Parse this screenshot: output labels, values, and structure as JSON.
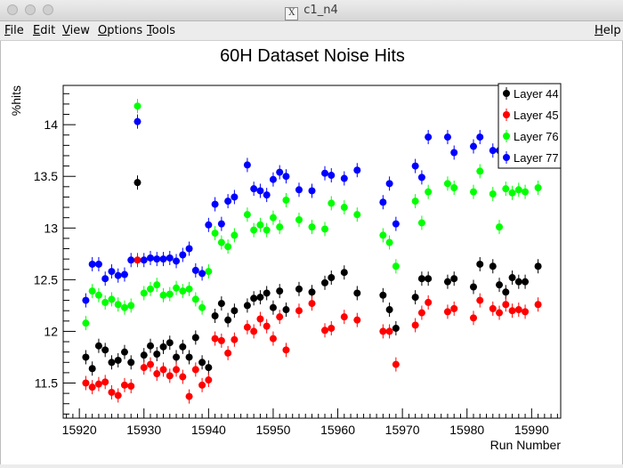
{
  "window": {
    "title": "c1_n4",
    "x_icon": "X"
  },
  "menu": {
    "file": "File",
    "edit": "Edit",
    "view": "View",
    "options": "Options",
    "tools": "Tools",
    "help": "Help"
  },
  "colors": {
    "layer44": "#000000",
    "layer45": "#ff0000",
    "layer76": "#00ff00",
    "layer77": "#0000ff"
  },
  "chart_data": {
    "type": "scatter",
    "title": "60H Dataset Noise Hits",
    "xlabel": "Run Number",
    "ylabel": "%hits",
    "xlim": [
      15917.5,
      15994.5
    ],
    "ylim": [
      11.16,
      14.38
    ],
    "xticks": [
      15920,
      15930,
      15940,
      15950,
      15960,
      15970,
      15980,
      15990
    ],
    "xtick_labels": [
      "15920",
      "15930",
      "15940",
      "15950",
      "15960",
      "15970",
      "15980",
      "15990"
    ],
    "yticks": [
      11.5,
      12,
      12.5,
      13,
      13.5,
      14
    ],
    "ytick_labels": [
      "11.5",
      "12",
      "12.5",
      "13",
      "13.5",
      "14"
    ],
    "legend_position": "top-right",
    "x": [
      15921,
      15922,
      15923,
      15924,
      15925,
      15926,
      15927,
      15928,
      15929,
      15930,
      15931,
      15932,
      15933,
      15934,
      15935,
      15936,
      15937,
      15938,
      15939,
      15940,
      15941,
      15942,
      15943,
      15944,
      15946,
      15947,
      15948,
      15949,
      15950,
      15951,
      15952,
      15954,
      15956,
      15958,
      15959,
      15961,
      15963,
      15967,
      15968,
      15969,
      15972,
      15973,
      15974,
      15977,
      15978,
      15981,
      15982,
      15984,
      15985,
      15986,
      15987,
      15988,
      15989,
      15991
    ],
    "series": [
      {
        "name": "Layer 44",
        "color": "#000000",
        "values": [
          11.75,
          11.64,
          11.86,
          11.82,
          11.7,
          11.72,
          11.8,
          11.7,
          13.44,
          11.77,
          11.86,
          11.78,
          11.85,
          11.89,
          11.75,
          11.85,
          11.75,
          11.94,
          11.7,
          11.65,
          12.15,
          12.27,
          12.11,
          12.2,
          12.25,
          12.32,
          12.33,
          12.37,
          12.23,
          12.39,
          12.21,
          12.41,
          12.38,
          12.47,
          12.52,
          12.57,
          12.37,
          12.35,
          12.21,
          12.03,
          12.33,
          12.51,
          12.51,
          12.48,
          12.51,
          12.43,
          12.65,
          12.63,
          12.45,
          12.38,
          12.52,
          12.48,
          12.48,
          12.63
        ]
      },
      {
        "name": "Layer 45",
        "color": "#ff0000",
        "values": [
          11.5,
          11.46,
          11.49,
          11.51,
          11.41,
          11.38,
          11.48,
          11.47,
          12.69,
          11.65,
          11.68,
          11.59,
          11.63,
          11.57,
          11.63,
          11.56,
          11.37,
          11.63,
          11.48,
          11.53,
          11.93,
          11.91,
          11.79,
          11.92,
          12.04,
          12.0,
          12.12,
          12.05,
          11.93,
          12.14,
          11.82,
          12.2,
          12.27,
          12.01,
          12.03,
          12.14,
          12.11,
          12.0,
          12.0,
          11.68,
          12.06,
          12.18,
          12.28,
          12.19,
          12.22,
          12.13,
          12.3,
          12.22,
          12.18,
          12.26,
          12.2,
          12.21,
          12.19,
          12.26
        ]
      },
      {
        "name": "Layer 76",
        "color": "#00ff00",
        "values": [
          12.08,
          12.39,
          12.35,
          12.28,
          12.31,
          12.26,
          12.23,
          12.25,
          14.18,
          12.37,
          12.41,
          12.45,
          12.35,
          12.36,
          12.42,
          12.39,
          12.41,
          12.31,
          12.23,
          12.58,
          12.95,
          12.86,
          12.82,
          12.93,
          13.13,
          12.98,
          13.03,
          12.98,
          13.1,
          13.01,
          13.27,
          13.08,
          13.01,
          12.99,
          13.24,
          13.2,
          13.13,
          12.93,
          12.86,
          12.63,
          13.26,
          13.05,
          13.35,
          13.43,
          13.39,
          13.35,
          13.55,
          13.33,
          13.01,
          13.38,
          13.34,
          13.37,
          13.35,
          13.39
        ]
      },
      {
        "name": "Layer 77",
        "color": "#0000ff",
        "values": [
          12.3,
          12.65,
          12.65,
          12.51,
          12.58,
          12.54,
          12.55,
          12.69,
          14.03,
          12.69,
          12.71,
          12.7,
          12.7,
          12.71,
          12.68,
          12.74,
          12.8,
          12.59,
          12.56,
          13.03,
          13.23,
          13.04,
          13.26,
          13.3,
          13.61,
          13.38,
          13.36,
          13.32,
          13.47,
          13.54,
          13.5,
          13.37,
          13.36,
          13.53,
          13.51,
          13.48,
          13.56,
          13.25,
          13.43,
          13.04,
          13.6,
          13.49,
          13.88,
          13.88,
          13.73,
          13.79,
          13.88,
          13.75,
          13.75,
          13.76,
          13.75,
          13.76,
          13.76,
          13.76
        ]
      }
    ]
  }
}
